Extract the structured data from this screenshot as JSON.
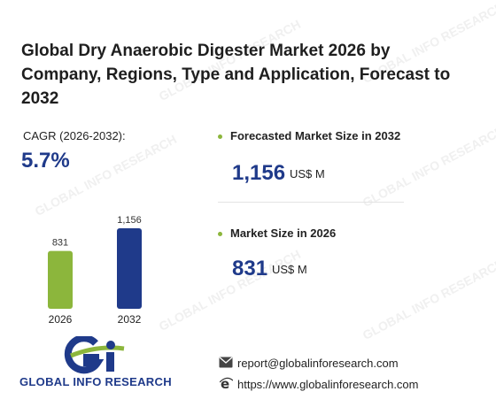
{
  "title": "Global Dry Anaerobic Digester Market 2026 by Company, Regions, Type and Application, Forecast to 2032",
  "cagr": {
    "label": "CAGR (2026-2032):",
    "value": "5.7%"
  },
  "forecast": {
    "label": "Forecasted Market Size in 2032",
    "value": "1,156",
    "unit": "US$ M"
  },
  "current": {
    "label": "Market Size in 2026",
    "value": "831",
    "unit": "US$ M"
  },
  "chart_data": {
    "type": "bar",
    "categories": [
      "2026",
      "2032"
    ],
    "values": [
      831,
      1156
    ],
    "value_labels": [
      "831",
      "1,156"
    ],
    "colors": [
      "#8cb63c",
      "#1f3a8a"
    ],
    "title": "",
    "xlabel": "",
    "ylabel": ""
  },
  "logo": {
    "text": "GLOBAL INFO RESEARCH"
  },
  "contact": {
    "email": "report@globalinforesearch.com",
    "website": "https://www.globalinforesearch.com",
    "email_icon": "envelope-icon",
    "web_icon": "browser-e-icon"
  },
  "watermark": "GLOBAL INFO RESEARCH"
}
